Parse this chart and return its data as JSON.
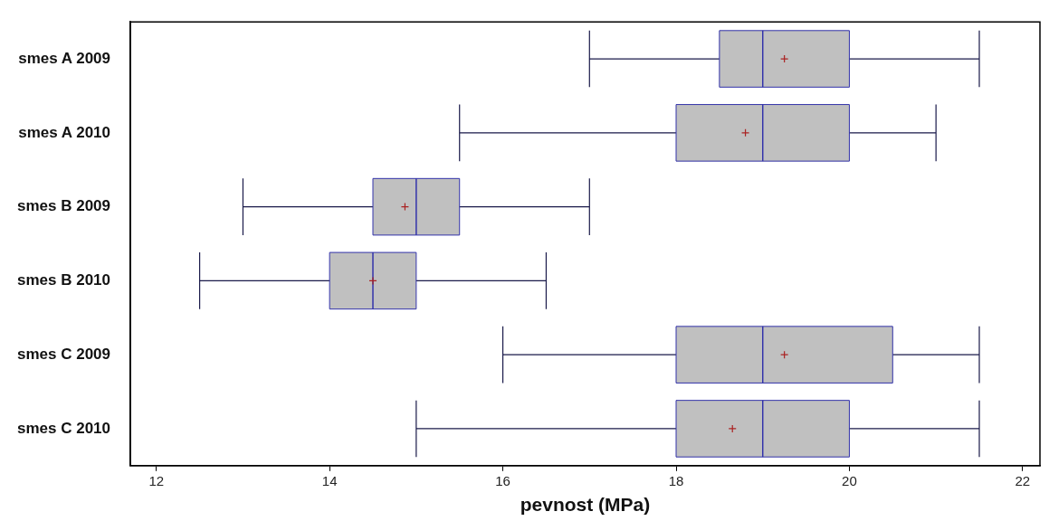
{
  "chart_data": {
    "type": "box",
    "orientation": "horizontal",
    "xlabel": "pevnost (MPa)",
    "categories": [
      "smes A 2009",
      "smes A 2010",
      "smes B 2009",
      "smes B 2010",
      "smes C 2009",
      "smes C 2010"
    ],
    "boxes": [
      {
        "low": 17,
        "q1": 18.5,
        "median": 19,
        "q3": 20,
        "high": 21.5,
        "mean": 19.25
      },
      {
        "low": 15.5,
        "q1": 18,
        "median": 19,
        "q3": 20,
        "high": 21,
        "mean": 18.8
      },
      {
        "low": 13,
        "q1": 14.5,
        "median": 15,
        "q3": 15.5,
        "high": 17,
        "mean": 14.87
      },
      {
        "low": 12.5,
        "q1": 14,
        "median": 14.5,
        "q3": 15,
        "high": 16.5,
        "mean": 14.5
      },
      {
        "low": 16,
        "q1": 18,
        "median": 19,
        "q3": 20.5,
        "high": 21.5,
        "mean": 19.25
      },
      {
        "low": 15,
        "q1": 18,
        "median": 19,
        "q3": 20,
        "high": 21.5,
        "mean": 18.65
      }
    ],
    "color": "#c0c0c0",
    "marker": "cross",
    "xlim": [
      11.7,
      22.2
    ],
    "xticks": [
      12,
      14,
      16,
      18,
      20,
      22
    ]
  }
}
